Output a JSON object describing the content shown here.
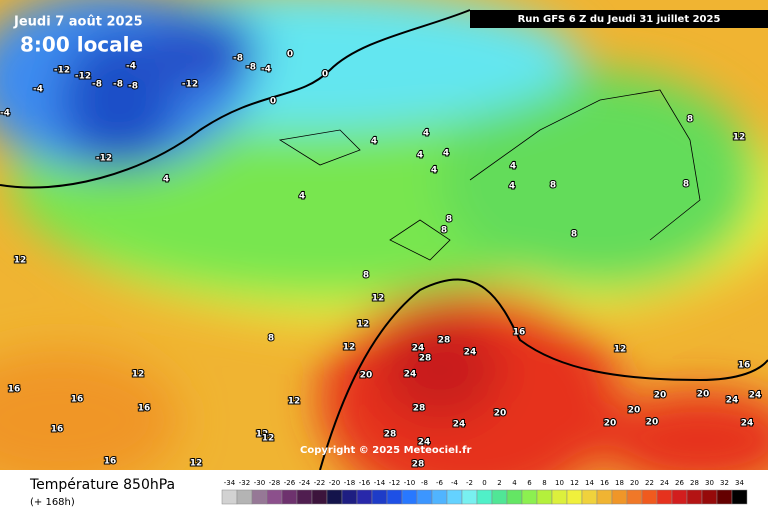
{
  "header": {
    "date": "Jeudi 7 août 2025",
    "time": "8:00 locale",
    "run": "Run GFS 6 Z du Jeudi 31 juillet 2025"
  },
  "copyright": "Copyright © 2025 Meteociel.fr",
  "footer": {
    "parameter": "Température 850hPa",
    "lead": "(+ 168h)"
  },
  "contour_labels": [
    -12,
    -12,
    -4,
    -8,
    -8,
    -8,
    -4,
    -12,
    -8,
    -8,
    -4,
    0,
    0,
    0,
    -12,
    -4,
    4,
    4,
    4,
    4,
    4,
    4,
    4,
    4,
    4,
    8,
    8,
    8,
    8,
    8,
    8,
    8,
    12,
    12,
    12,
    12,
    12,
    8,
    12,
    12,
    12,
    12,
    12,
    16,
    12,
    16,
    16,
    16,
    16,
    16,
    16,
    20,
    24,
    28,
    28,
    24,
    24,
    28,
    28,
    24,
    24,
    20,
    28,
    20,
    20,
    20,
    20,
    20,
    24,
    24,
    24
  ],
  "color_scale": {
    "values": [
      -34,
      -32,
      -30,
      -28,
      -26,
      -24,
      -22,
      -20,
      -18,
      -16,
      -14,
      -12,
      -10,
      -8,
      -6,
      -4,
      -2,
      0,
      2,
      4,
      6,
      8,
      10,
      12,
      14,
      16,
      18,
      20,
      22,
      24,
      26,
      28,
      30,
      32,
      34
    ],
    "colors": [
      "#d2d2d2",
      "#b4b4b4",
      "#967896",
      "#8c508c",
      "#6e326e",
      "#501e50",
      "#3c143c",
      "#14144b",
      "#1e1e82",
      "#2828aa",
      "#1e3cc8",
      "#1e50e6",
      "#2878ff",
      "#3c96ff",
      "#50b4ff",
      "#64d2ff",
      "#78f0f0",
      "#50f0c8",
      "#50e696",
      "#64e664",
      "#8cf050",
      "#b4f03c",
      "#dcf03c",
      "#f0f03c",
      "#f0d23c",
      "#f0b432",
      "#f09628",
      "#f07828",
      "#f05a1e",
      "#e6321e",
      "#d21e1e",
      "#b41414",
      "#960a0a",
      "#640000",
      "#000000"
    ]
  }
}
